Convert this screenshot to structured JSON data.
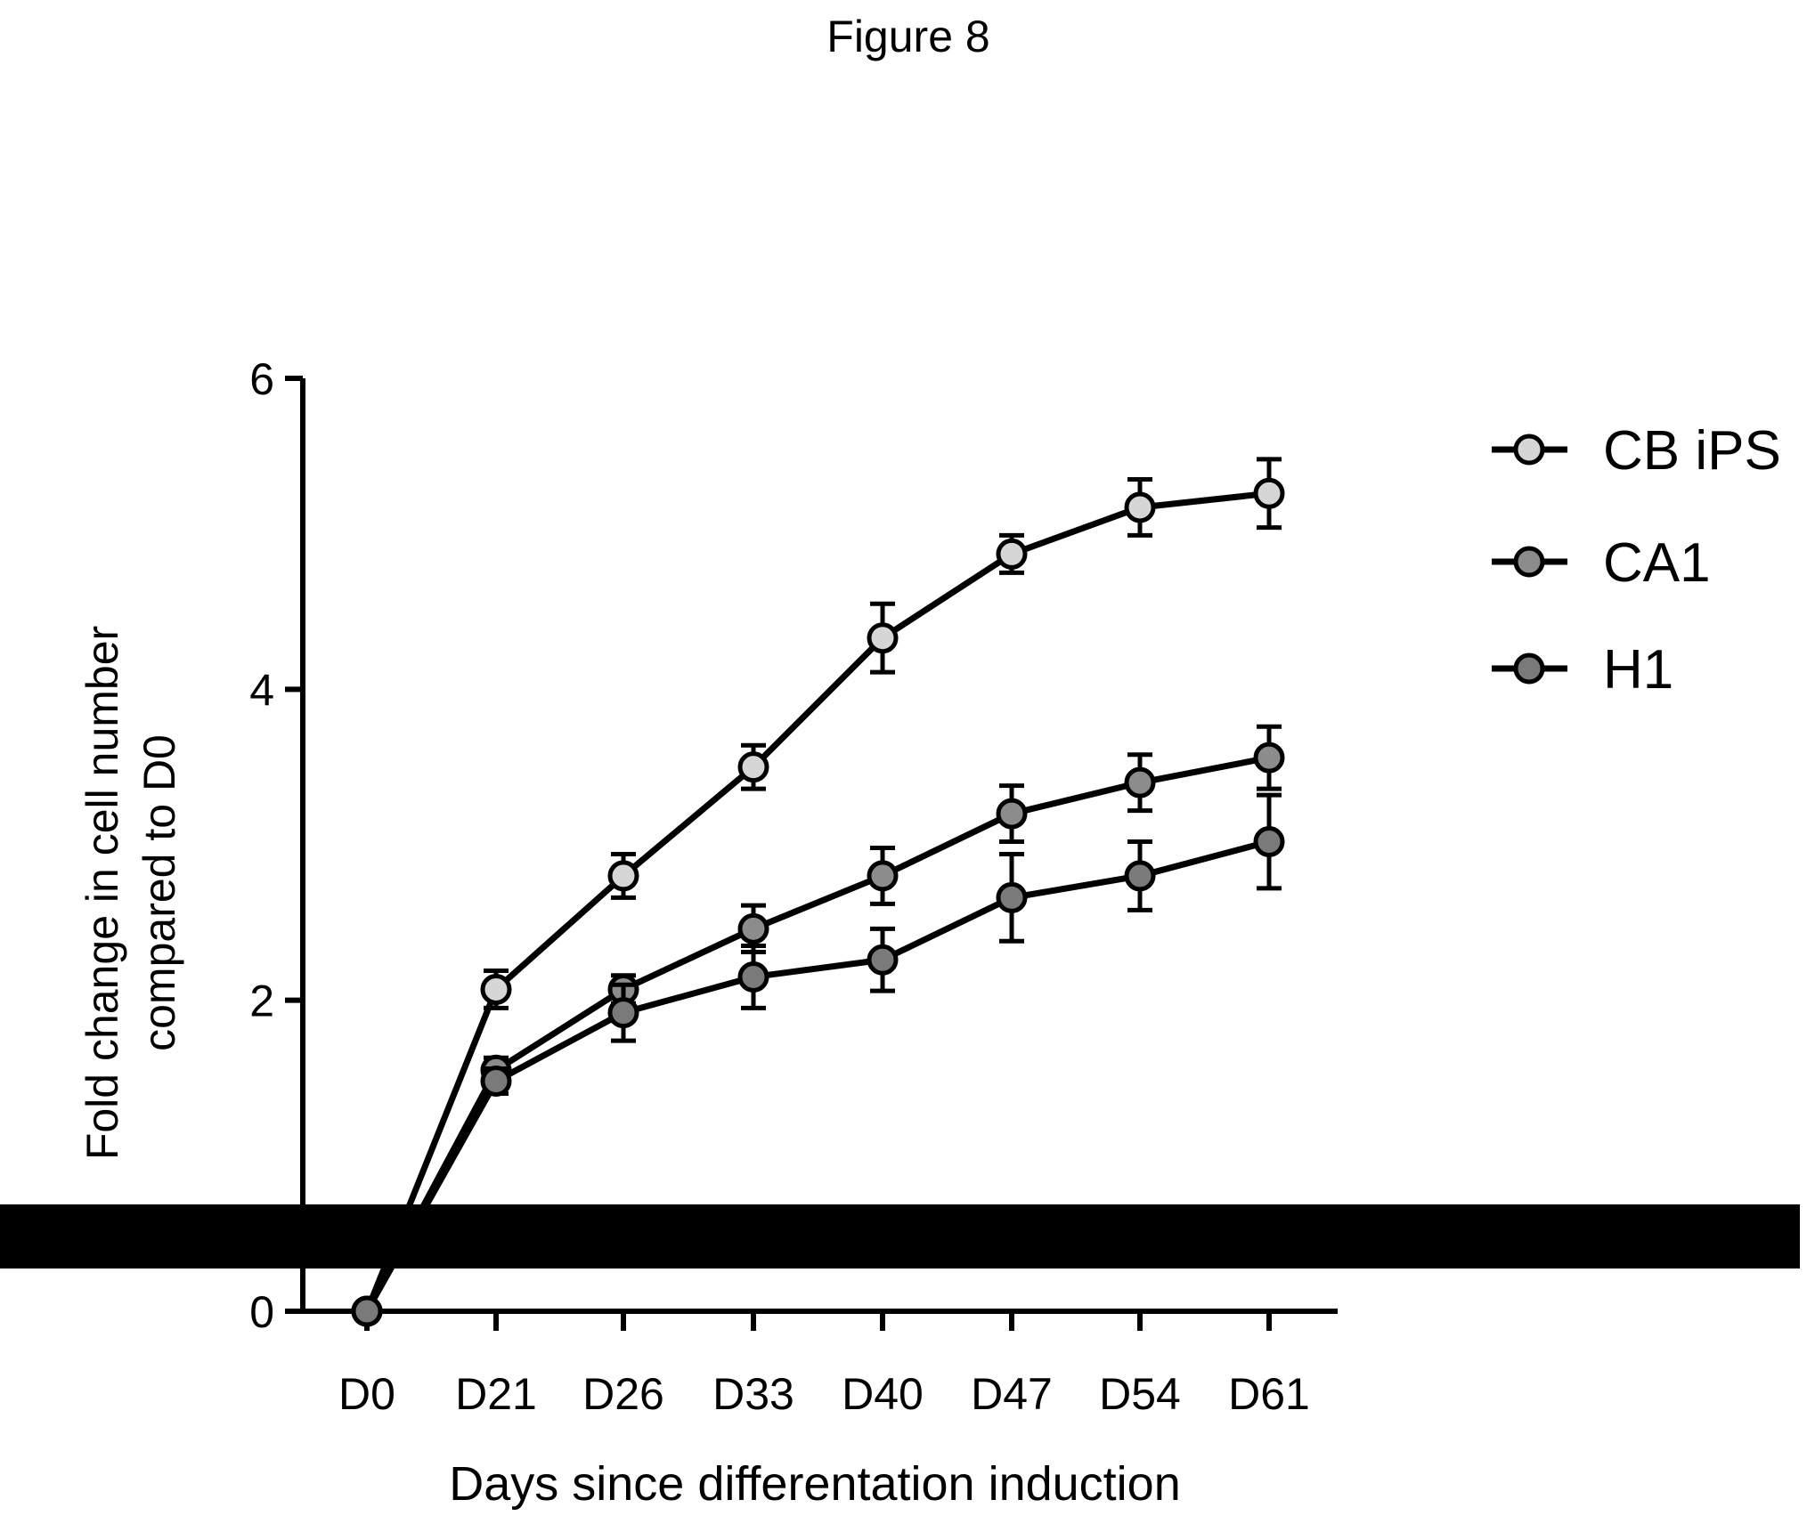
{
  "figure_title": "Figure 8",
  "chart_data": {
    "type": "line",
    "title": "",
    "xlabel": "Days since differentation induction",
    "ylabel_lines": [
      "Fold change in cell number",
      "compared to D0"
    ],
    "categories": [
      "D0",
      "D21",
      "D26",
      "D33",
      "D40",
      "D47",
      "D54",
      "D61"
    ],
    "ylim": [
      0,
      6
    ],
    "yticks": [
      0,
      2,
      4,
      6
    ],
    "grid": false,
    "legend_position": "top-right",
    "series": [
      {
        "name": "CB iPS",
        "color": "#d6d6d6",
        "values": [
          0,
          2.07,
          2.8,
          3.5,
          4.33,
          4.87,
          5.17,
          5.26
        ],
        "errors": [
          0,
          0.12,
          0.14,
          0.14,
          0.22,
          0.12,
          0.18,
          0.22
        ]
      },
      {
        "name": "CA1",
        "color": "#8c8c8c",
        "values": [
          0,
          1.55,
          2.07,
          2.46,
          2.8,
          3.2,
          3.4,
          3.56
        ],
        "errors": [
          0,
          0.08,
          0.09,
          0.15,
          0.18,
          0.18,
          0.18,
          0.2
        ]
      },
      {
        "name": "H1",
        "color": "#7a7a7a",
        "values": [
          0,
          1.48,
          1.92,
          2.15,
          2.26,
          2.66,
          2.8,
          3.02
        ],
        "errors": [
          0,
          0.08,
          0.18,
          0.2,
          0.2,
          0.28,
          0.22,
          0.3
        ]
      }
    ],
    "annotations": [
      "black redaction bar across plot"
    ]
  }
}
